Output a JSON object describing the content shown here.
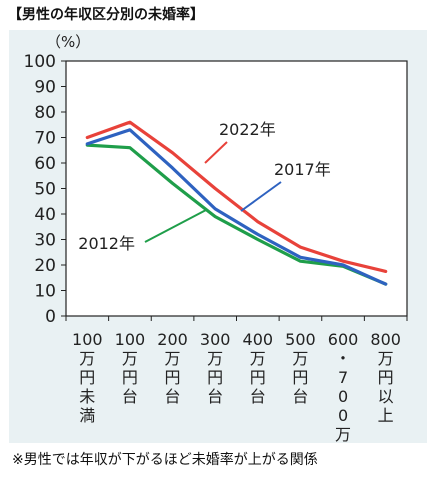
{
  "header": {
    "title": "【男性の年収区分別の未婚率】"
  },
  "footer": {
    "note": "※男性では年収が下がるほど未婚率が上がる関係"
  },
  "chart_data": {
    "type": "line",
    "title": "",
    "xlabel": "",
    "ylabel": "（%）",
    "ylim": [
      0,
      100
    ],
    "yticks": [
      0,
      10,
      20,
      30,
      40,
      50,
      60,
      70,
      80,
      90,
      100
    ],
    "grid": false,
    "categories": [
      "100万円未満",
      "100万円台",
      "200万円台",
      "300万円台",
      "400万円台",
      "500万円台",
      "600・700万円台",
      "800万円以上"
    ],
    "series": [
      {
        "name": "2022年",
        "color": "#e8423a",
        "values": [
          70,
          76,
          64,
          50,
          37,
          27,
          21.5,
          17.5
        ]
      },
      {
        "name": "2017年",
        "color": "#2e62c0",
        "values": [
          67.5,
          73,
          58,
          42,
          32,
          23,
          20,
          12.5
        ]
      },
      {
        "name": "2012年",
        "color": "#1f9e4a",
        "values": [
          67,
          66,
          52,
          39,
          30,
          21.5,
          19.5,
          12.5
        ]
      }
    ]
  }
}
